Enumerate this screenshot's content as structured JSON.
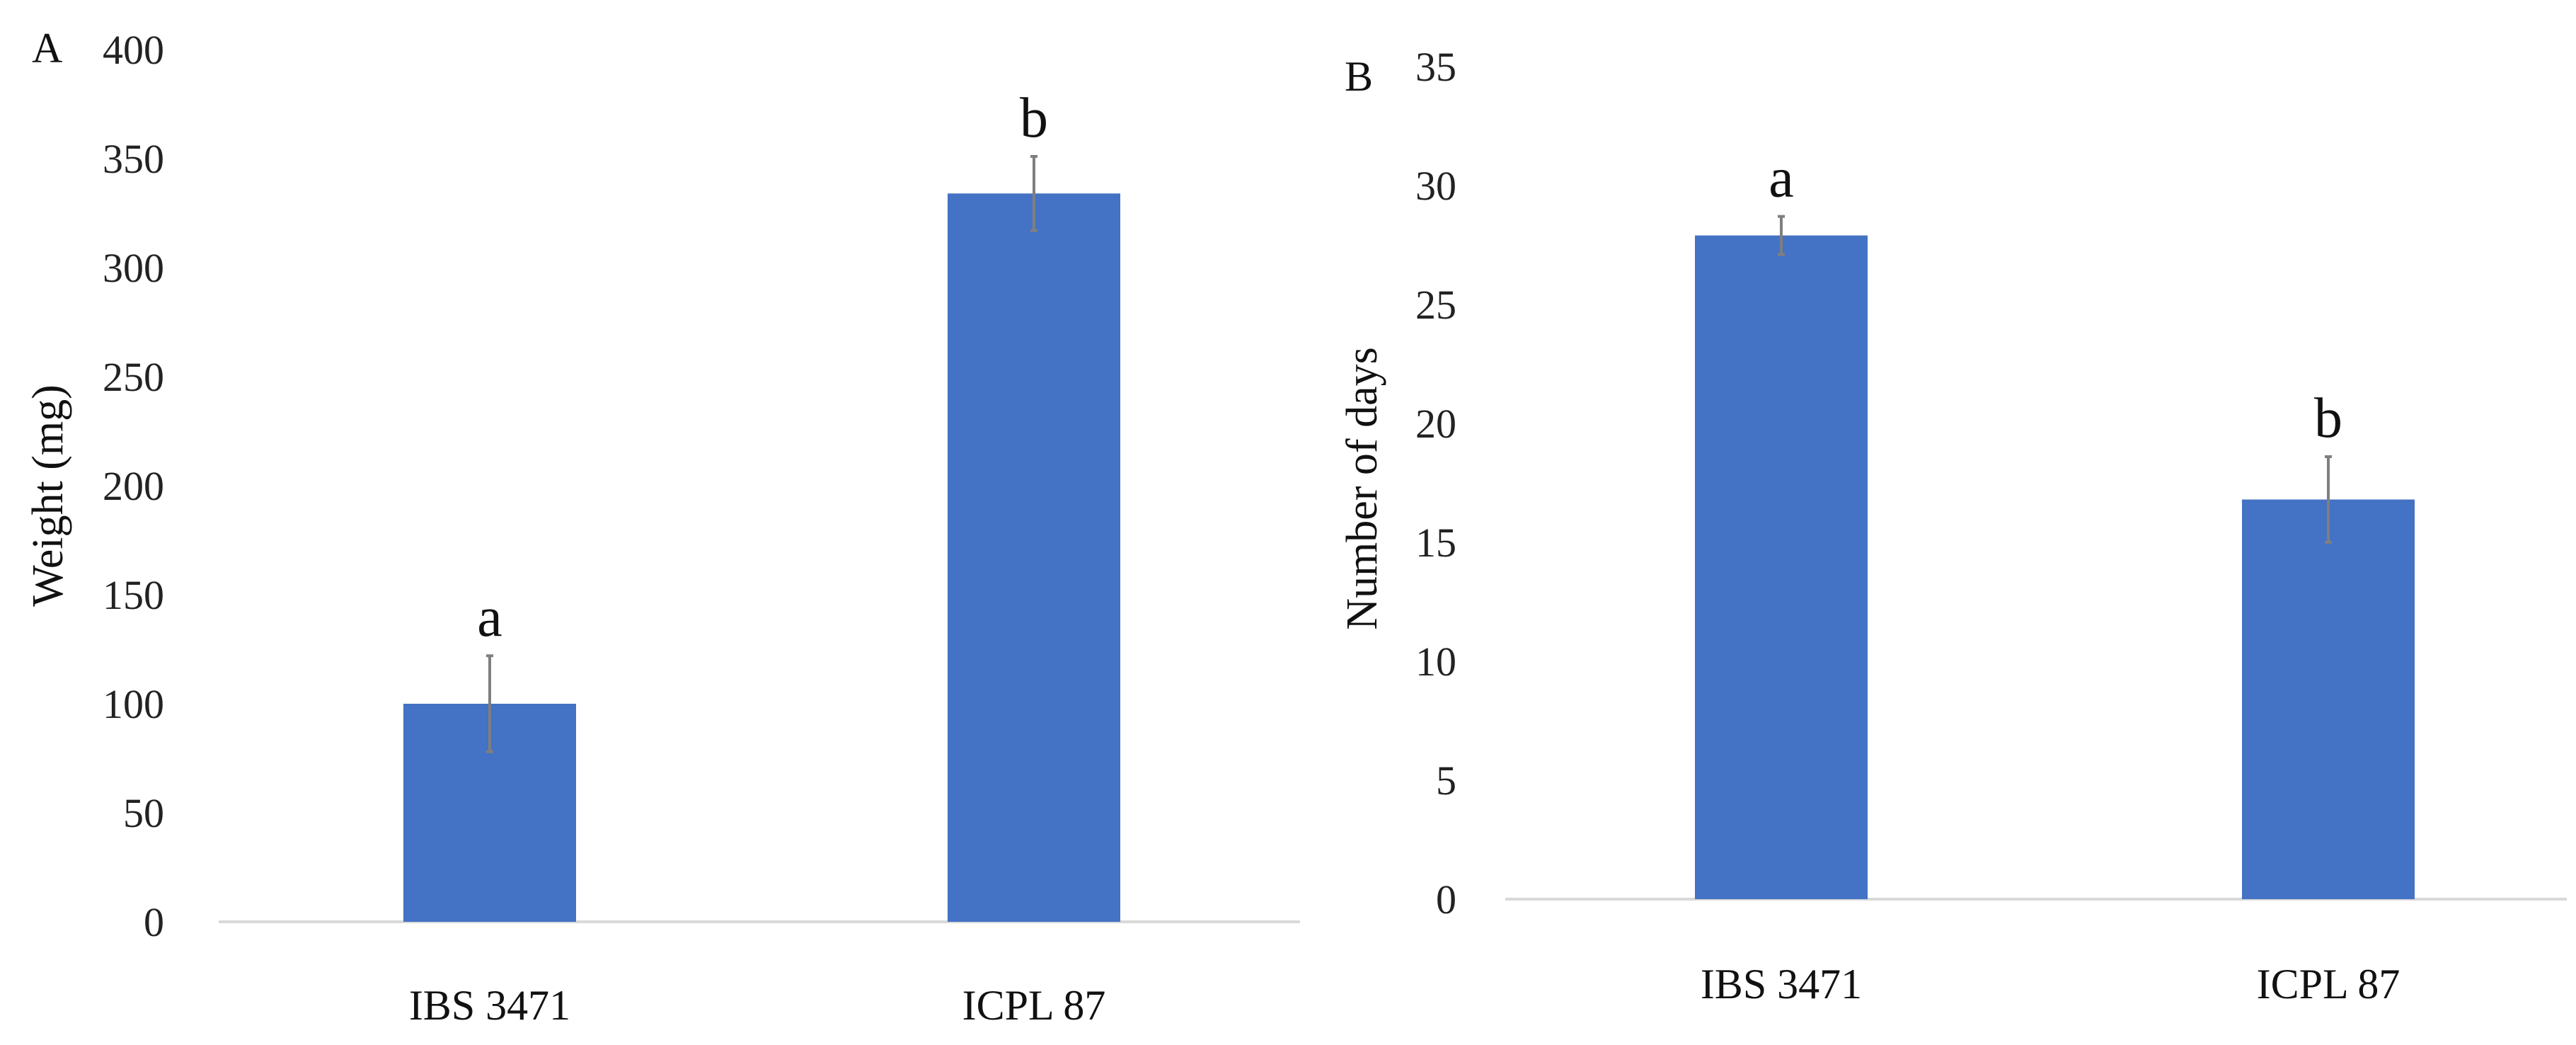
{
  "chart_data": [
    {
      "type": "bar",
      "panel_label": "A",
      "ylabel": "Weight  (mg)",
      "xlabel": "",
      "categories": [
        "IBS 3471",
        "ICPL 87"
      ],
      "values": [
        100,
        334
      ],
      "errors": [
        22,
        17
      ],
      "significance_letters": [
        "a",
        "b"
      ],
      "ylim": [
        0,
        400
      ],
      "yticks": [
        "0",
        "50",
        "100",
        "150",
        "200",
        "250",
        "300",
        "350",
        "400"
      ],
      "grid": false,
      "bar_color": "#4472C4"
    },
    {
      "type": "bar",
      "panel_label": "B",
      "ylabel": "Number of days",
      "xlabel": "",
      "categories": [
        "IBS 3471",
        "ICPL 87"
      ],
      "values": [
        27.9,
        16.8
      ],
      "errors": [
        0.8,
        1.8
      ],
      "significance_letters": [
        "a",
        "b"
      ],
      "ylim": [
        0,
        35
      ],
      "yticks": [
        "0",
        "5",
        "10",
        "15",
        "20",
        "25",
        "30",
        "35"
      ],
      "grid": false,
      "bar_color": "#4472C4"
    }
  ]
}
